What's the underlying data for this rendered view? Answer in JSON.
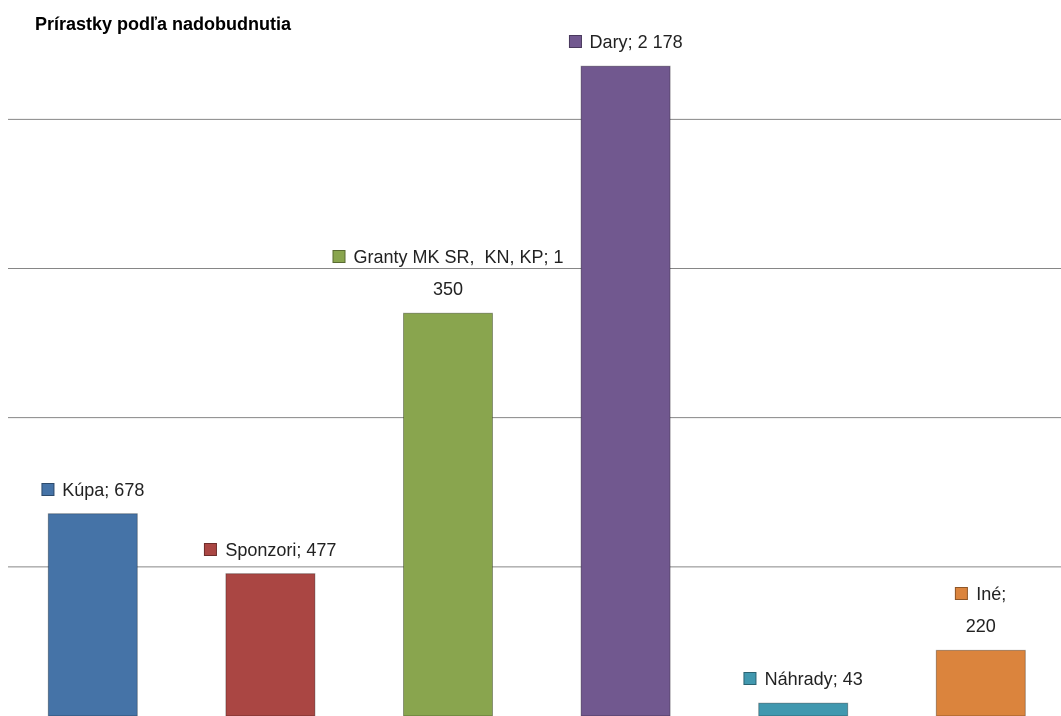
{
  "chart_data": {
    "type": "bar",
    "title": "Prírastky  podľa nadobudnutia",
    "categories": [
      "Kúpa",
      "Sponzori",
      "Granty MK SR,  KN, KP",
      "Dary",
      "Náhrady",
      "Iné"
    ],
    "values": [
      678,
      477,
      1350,
      2178,
      43,
      220
    ],
    "value_labels": [
      "678",
      "477",
      "1 350",
      "2 178",
      "43",
      "220"
    ],
    "label_separator": "; ",
    "colors": [
      "#4573a7",
      "#aa4643",
      "#89a54e",
      "#71588f",
      "#4198af",
      "#db843d"
    ],
    "ylim": [
      0,
      2400
    ],
    "yticks": [
      500,
      1000,
      1500,
      2000
    ],
    "grid": true
  }
}
